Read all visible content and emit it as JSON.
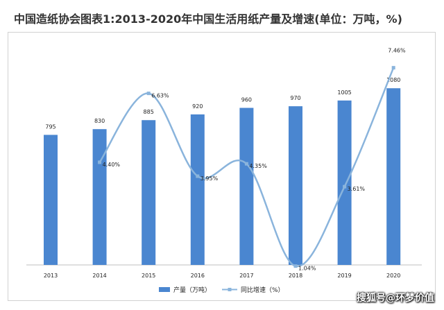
{
  "chart_data": {
    "type": "bar",
    "title": "中国造纸协会图表1:2013-2020年中国生活用纸产量及增速(单位：万吨，%)",
    "categories": [
      "2013",
      "2014",
      "2015",
      "2016",
      "2017",
      "2018",
      "2019",
      "2020"
    ],
    "series": [
      {
        "name": "产量（万吨）",
        "type": "bar",
        "color": "#4a86d0",
        "values": [
          795,
          830,
          885,
          920,
          960,
          970,
          1005,
          1080
        ],
        "labels": [
          "795",
          "830",
          "885",
          "920",
          "960",
          "970",
          "1005",
          "1080"
        ]
      },
      {
        "name": "同比增速（%）",
        "type": "line",
        "color": "#8ab4dc",
        "smooth": true,
        "values": [
          null,
          4.4,
          6.63,
          3.95,
          4.35,
          1.04,
          3.61,
          7.46
        ],
        "labels": [
          "",
          "4.40%",
          "6.63%",
          "3.95%",
          "4.35%",
          "1.04%",
          "3.61%",
          "7.46%"
        ]
      }
    ],
    "ylim_bar": [
      0,
      1200
    ],
    "ylim_line": [
      0,
      8.5
    ],
    "legend_position": "bottom",
    "grid": false
  },
  "watermark": "搜狐号@环梦价值"
}
